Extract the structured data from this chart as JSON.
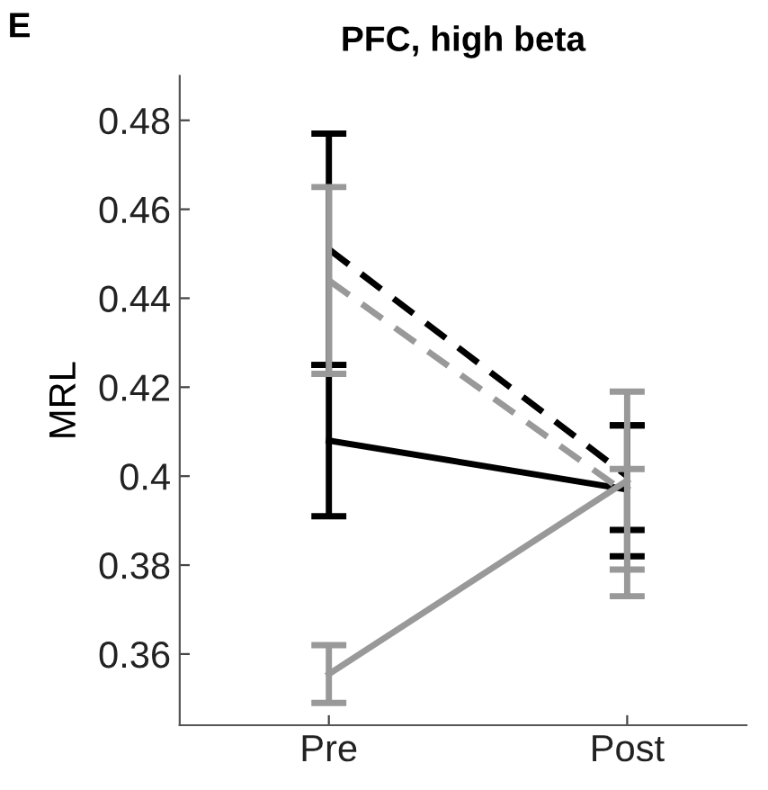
{
  "chart_data": {
    "type": "line",
    "title": "PFC, high beta",
    "ylabel": "MRL",
    "annotations": [
      "E"
    ],
    "categories": [
      "Pre",
      "Post"
    ],
    "series": [
      {
        "color": "#000000",
        "line_style": "solid",
        "values": [
          0.408,
          0.397
        ],
        "errors": [
          0.017,
          [
            0.382,
            0.4114
          ]
        ]
      },
      {
        "color": "#000000",
        "line_style": "dashed",
        "values": [
          0.451,
          0.4
        ],
        "errors": [
          0.026,
          [
            0.3879,
            0.4114
          ]
        ]
      },
      {
        "color": "#999999",
        "line_style": "dashed",
        "values": [
          0.444,
          0.396
        ],
        "errors": [
          0.021,
          [
            0.373,
            0.419
          ]
        ]
      },
      {
        "color": "#999999",
        "line_style": "solid",
        "values": [
          0.3555,
          0.399
        ],
        "errors": [
          0.0065,
          [
            0.379,
            0.4016
          ]
        ]
      }
    ],
    "ylim": [
      0.344,
      0.49
    ],
    "yticks": [
      0.36,
      0.38,
      {
        "value": 0.4,
        "label": "0.4"
      },
      0.42,
      0.44,
      0.46,
      0.48
    ],
    "grid": false,
    "legend": false,
    "marker": "none"
  }
}
